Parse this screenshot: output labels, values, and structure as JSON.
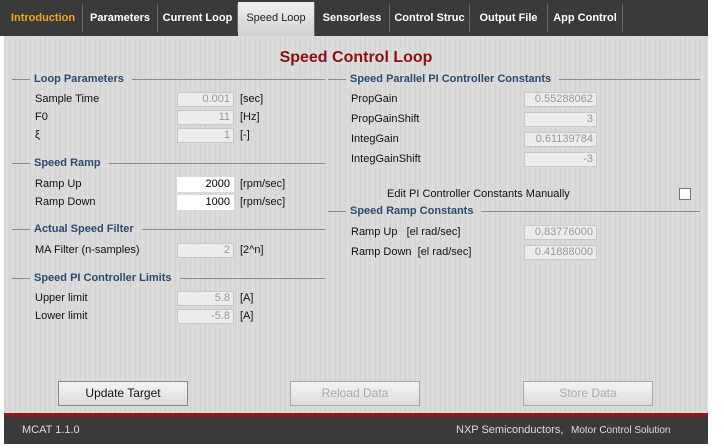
{
  "tabs": [
    "Introduction",
    "Parameters",
    "Current Loop",
    "Speed Loop",
    "Sensorless",
    "Control Struc",
    "Output File",
    "App Control"
  ],
  "title": "Speed Control Loop",
  "left_groups": [
    {
      "title": "Loop Parameters",
      "rows": [
        {
          "label": "Sample Time",
          "value": "0.001",
          "unit": "[sec]"
        },
        {
          "label": "F0",
          "value": "11",
          "unit": "[Hz]"
        },
        {
          "label": "ξ",
          "value": "1",
          "unit": "[-]"
        }
      ]
    },
    {
      "title": "Speed Ramp",
      "rows": [
        {
          "label": "Ramp Up",
          "value": "2000",
          "unit": "[rpm/sec]"
        },
        {
          "label": "Ramp Down",
          "value": "1000",
          "unit": "[rpm/sec]"
        }
      ]
    },
    {
      "title": "Actual Speed Filter",
      "rows": [
        {
          "label": "MA Filter (n-samples)",
          "value": "2",
          "unit": "[2^n]"
        }
      ]
    },
    {
      "title": "Speed PI Controller Limits",
      "rows": [
        {
          "label": "Upper limit",
          "value": "5.8",
          "unit": "[A]"
        },
        {
          "label": "Lower limit",
          "value": "-5.8",
          "unit": "[A]"
        }
      ]
    }
  ],
  "right_groups": [
    {
      "title": "Speed Parallel PI Controller Constants",
      "rows": [
        {
          "label": "PropGain",
          "value": "0.55288062"
        },
        {
          "label": "PropGainShift",
          "value": "3"
        },
        {
          "label": "IntegGain",
          "value": "0.61139784"
        },
        {
          "label": "IntegGainShift",
          "value": "-3"
        }
      ]
    },
    {
      "title": "Speed Ramp Constants",
      "rows": [
        {
          "label": "Ramp Up   [el rad/sec]",
          "value": "0.83776000"
        },
        {
          "label": "Ramp Down  [el rad/sec]",
          "value": "0.41888000"
        }
      ]
    }
  ],
  "checkbox_label": "Edit PI Controller Constants Manually",
  "buttons": [
    "Update Target",
    "Reload Data",
    "Store Data"
  ],
  "footer": {
    "version": "MCAT 1.1.0",
    "company": "NXP Semiconductors,",
    "solution": "Motor Control Solution"
  }
}
